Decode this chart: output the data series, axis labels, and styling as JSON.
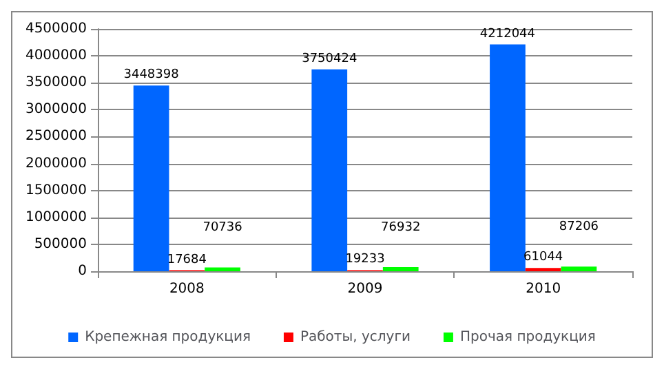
{
  "chart_data": {
    "type": "bar",
    "categories": [
      "2008",
      "2009",
      "2010"
    ],
    "series": [
      {
        "name": "Крепежная продукция",
        "color": "#0066ff",
        "values": [
          3448398,
          3750424,
          4212044
        ]
      },
      {
        "name": "Работы, услуги",
        "color": "#ff0000",
        "values": [
          17684,
          19233,
          61044
        ]
      },
      {
        "name": "Прочая продукция",
        "color": "#00ff00",
        "values": [
          70736,
          76932,
          87206
        ]
      }
    ],
    "ylim": [
      0,
      4500000
    ],
    "yticks": [
      0,
      500000,
      1000000,
      1500000,
      2000000,
      2500000,
      3000000,
      3500000,
      4000000,
      4500000
    ],
    "grid": "y",
    "legend": "bottom",
    "data_labels": true
  }
}
